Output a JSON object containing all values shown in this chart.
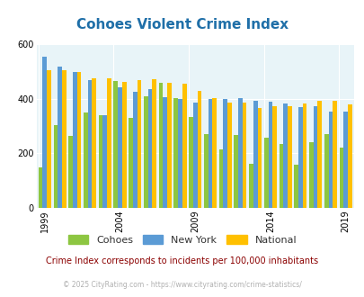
{
  "title": "Cohoes Violent Crime Index",
  "years": [
    1999,
    2000,
    2001,
    2002,
    2003,
    2004,
    2005,
    2006,
    2007,
    2008,
    2009,
    2010,
    2011,
    2012,
    2013,
    2014,
    2015,
    2016,
    2017,
    2018,
    2019
  ],
  "cohoes": [
    150,
    305,
    263,
    352,
    340,
    465,
    332,
    410,
    460,
    403,
    335,
    270,
    215,
    267,
    163,
    258,
    235,
    160,
    240,
    271,
    220
  ],
  "new_york": [
    555,
    520,
    500,
    470,
    340,
    442,
    426,
    437,
    408,
    401,
    388,
    400,
    400,
    404,
    393,
    389,
    384,
    371,
    374,
    354,
    354
  ],
  "national": [
    507,
    507,
    500,
    476,
    475,
    463,
    471,
    473,
    461,
    456,
    430,
    404,
    386,
    388,
    366,
    374,
    373,
    383,
    395,
    395,
    379
  ],
  "cohoes_color": "#8dc641",
  "newyork_color": "#5b9bd5",
  "national_color": "#ffc000",
  "bg_color": "#e8f4f8",
  "ylim": [
    0,
    600
  ],
  "yticks": [
    0,
    200,
    400,
    600
  ],
  "xlabel_ticks": [
    1999,
    2004,
    2009,
    2014,
    2019
  ],
  "legend_labels": [
    "Cohoes",
    "New York",
    "National"
  ],
  "subtitle": "Crime Index corresponds to incidents per 100,000 inhabitants",
  "footer": "© 2025 CityRating.com - https://www.cityrating.com/crime-statistics/",
  "title_color": "#1f6fa8",
  "subtitle_color": "#8b0000",
  "footer_color": "#b0b0b0",
  "fig_width": 4.06,
  "fig_height": 3.3,
  "dpi": 100
}
